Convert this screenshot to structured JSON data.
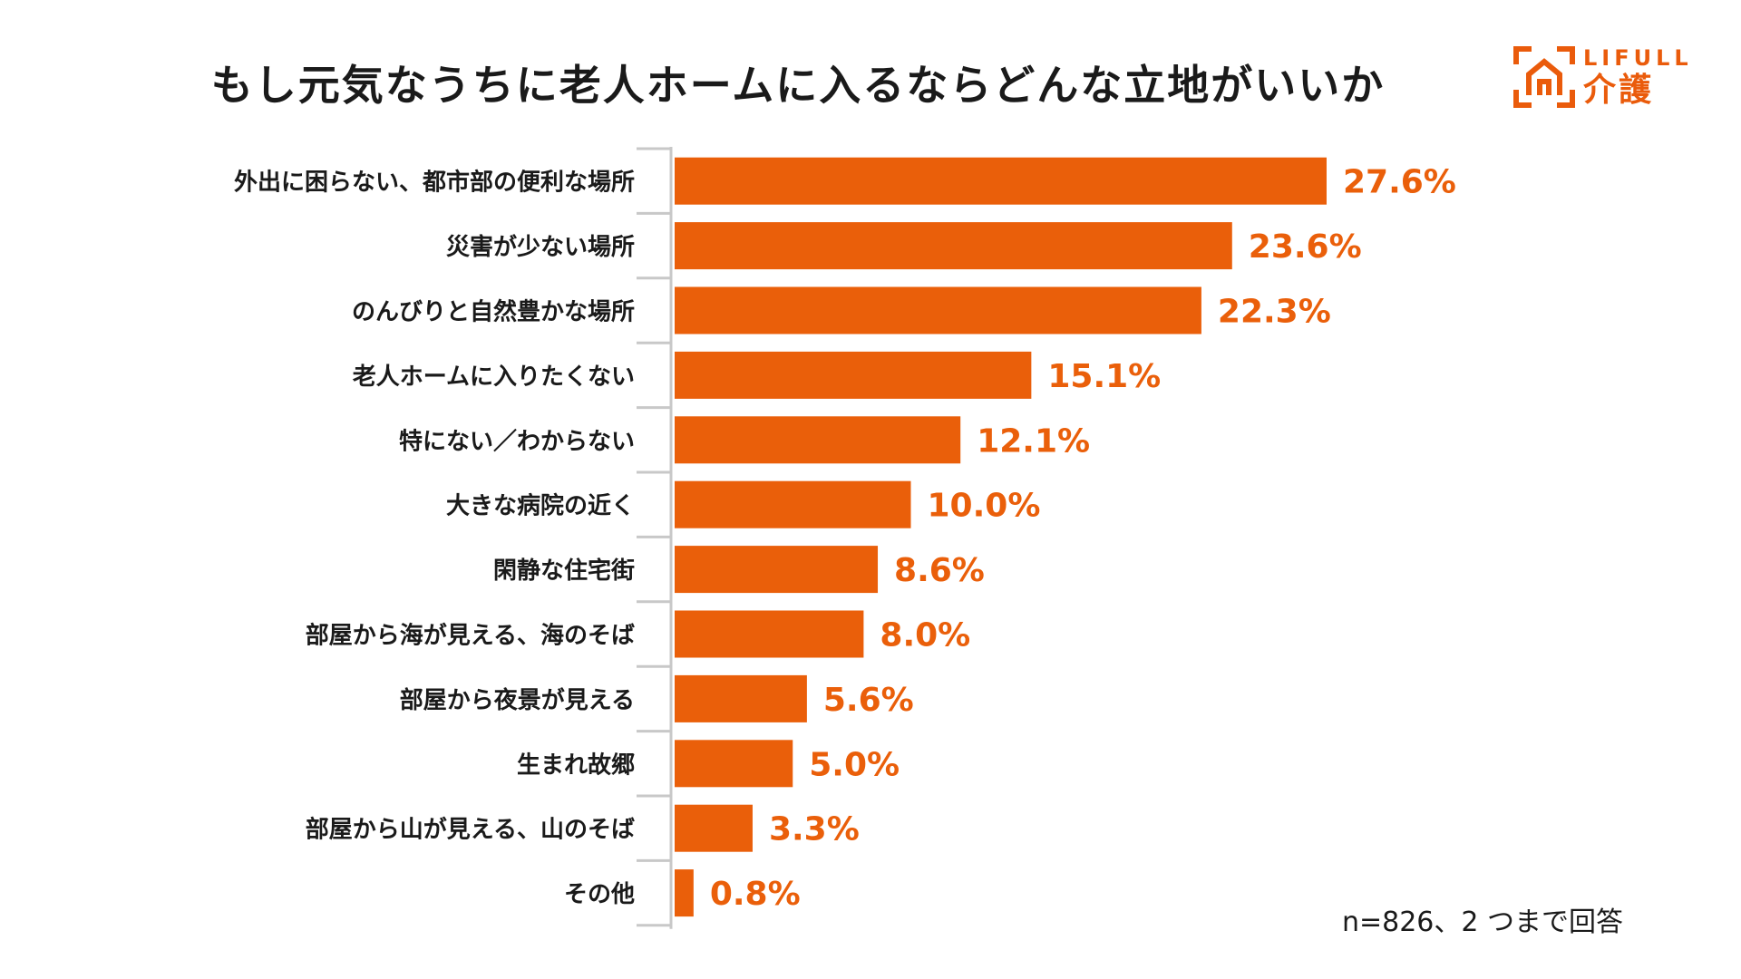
{
  "title": "もし元気なうちに老人ホームに入るならどんな立地がいいか",
  "logo": {
    "brand": "LIFULL",
    "sub": "介護",
    "icon": "house-logo-icon"
  },
  "footnote": "n=826、2 つまで回答",
  "colors": {
    "bar": "#ea5f0a",
    "value_label": "#ea5f0a",
    "axis": "#c8c8c8",
    "text": "#1a1a1a"
  },
  "chart_data": {
    "type": "bar",
    "orientation": "horizontal",
    "title": "もし元気なうちに老人ホームに入るならどんな立地がいいか",
    "categories": [
      "外出に困らない、都市部の便利な場所",
      "災害が少ない場所",
      "のんびりと自然豊かな場所",
      "老人ホームに入りたくない",
      "特にない／わからない",
      "大きな病院の近く",
      "閑静な住宅街",
      "部屋から海が見える、海のそば",
      "部屋から夜景が見える",
      "生まれ故郷",
      "部屋から山が見える、山のそば",
      "その他"
    ],
    "values": [
      27.6,
      23.6,
      22.3,
      15.1,
      12.1,
      10.0,
      8.6,
      8.0,
      5.6,
      5.0,
      3.3,
      0.8
    ],
    "value_labels": [
      "27.6%",
      "23.6%",
      "22.3%",
      "15.1%",
      "12.1%",
      "10.0%",
      "8.6%",
      "8.0%",
      "5.6%",
      "5.0%",
      "3.3%",
      "0.8%"
    ],
    "unit": "%",
    "xlim": [
      0,
      30
    ],
    "grid": false,
    "legend": "none"
  }
}
